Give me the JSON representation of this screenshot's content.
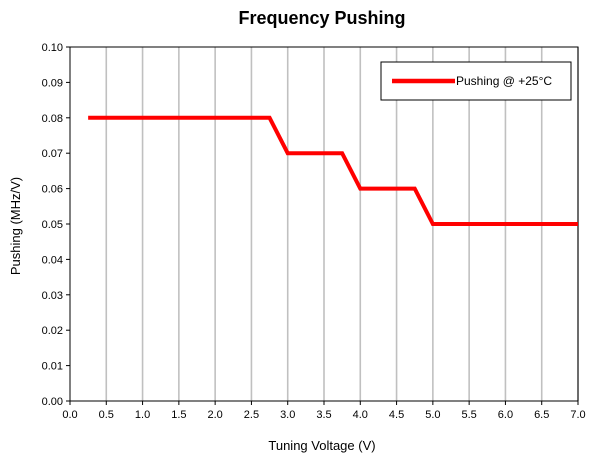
{
  "chart_data": {
    "type": "line",
    "title": "Frequency Pushing",
    "xlabel": "Tuning Voltage (V)",
    "ylabel": "Pushing (MHz/V)",
    "xlim": [
      0.0,
      7.0
    ],
    "ylim": [
      0.0,
      0.1
    ],
    "x_ticks": [
      "0.0",
      "0.5",
      "1.0",
      "1.5",
      "2.0",
      "2.5",
      "3.0",
      "3.5",
      "4.0",
      "4.5",
      "5.0",
      "5.5",
      "6.0",
      "6.5",
      "7.0"
    ],
    "y_ticks": [
      "0.00",
      "0.01",
      "0.02",
      "0.03",
      "0.04",
      "0.05",
      "0.06",
      "0.07",
      "0.08",
      "0.09",
      "0.10"
    ],
    "grid": "vertical",
    "legend_position": "top-right",
    "series": [
      {
        "name": "Pushing @ +25°C",
        "color": "#ff0000",
        "x": [
          0.25,
          2.75,
          3.0,
          3.75,
          4.0,
          4.75,
          5.0,
          7.0
        ],
        "y": [
          0.08,
          0.08,
          0.07,
          0.07,
          0.06,
          0.06,
          0.05,
          0.05
        ]
      }
    ]
  }
}
